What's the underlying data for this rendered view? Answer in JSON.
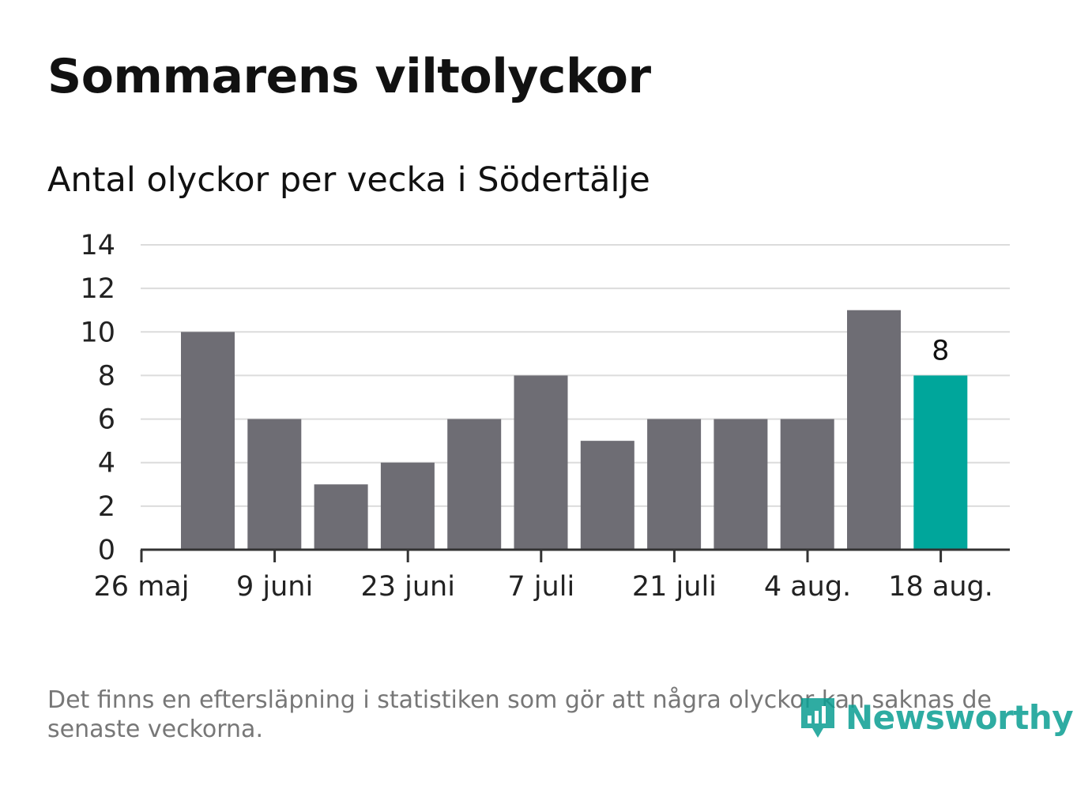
{
  "chart_data": {
    "type": "bar",
    "title": "Sommarens viltolyckor",
    "subtitle": "Antal olyckor per vecka i Södertälje",
    "xlabel": "",
    "ylabel": "",
    "ylim": [
      0,
      14
    ],
    "yticks": [
      0,
      2,
      4,
      6,
      8,
      10,
      12,
      14
    ],
    "xtick_labels": [
      "26 maj",
      "9 juni",
      "23 juni",
      "7 juli",
      "21 juli",
      "4 aug.",
      "18 aug."
    ],
    "values": [
      10,
      6,
      3,
      4,
      6,
      8,
      5,
      6,
      6,
      6,
      11,
      8
    ],
    "highlight_index": 11,
    "highlight_label": "8",
    "grid": true,
    "legend": "none",
    "colors": {
      "bar": "#6e6d74",
      "highlight": "#00a69b",
      "grid": "#dcdcdc",
      "axis": "#333333"
    }
  },
  "footnote": "Det finns en eftersläpning i statistiken som gör att några olyckor kan saknas de senaste veckorna.",
  "brand": {
    "name": "Newsworthy",
    "color": "#0a9e92",
    "icon": "newsworthy-logo-icon"
  }
}
